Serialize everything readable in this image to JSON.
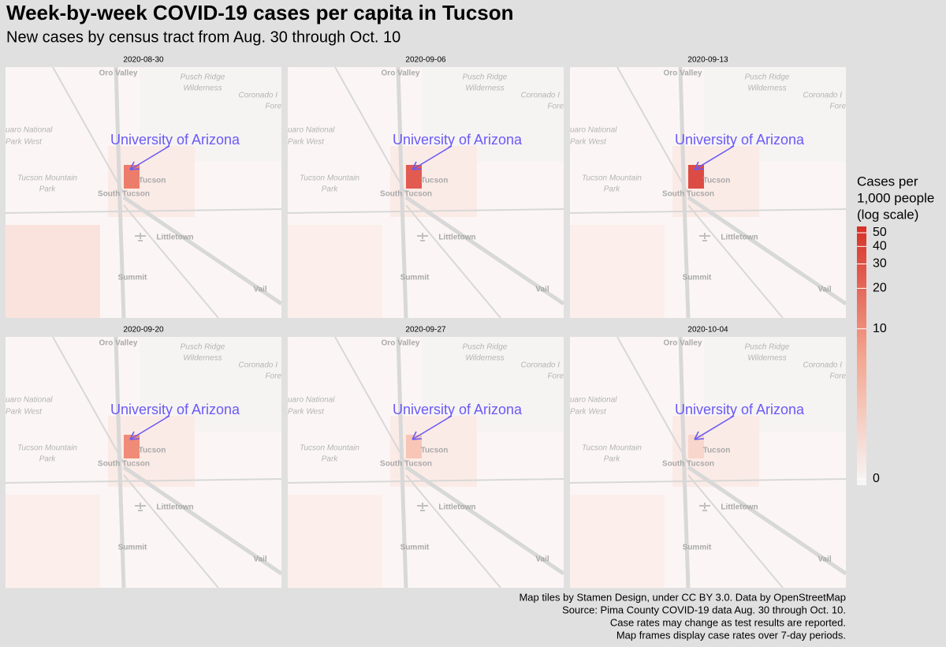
{
  "header": {
    "title": "Week-by-week COVID-19 cases per capita in Tucson",
    "subtitle": "New cases by census tract from Aug. 30 through Oct. 10"
  },
  "panels": [
    {
      "date": "2020-08-30",
      "highlight": "#ea6a55"
    },
    {
      "date": "2020-09-06",
      "highlight": "#dd4236"
    },
    {
      "date": "2020-09-13",
      "highlight": "#d73027"
    },
    {
      "date": "2020-09-20",
      "highlight": "#ec7a62"
    },
    {
      "date": "2020-09-27",
      "highlight": "#f6c0ae"
    },
    {
      "date": "2020-10-04",
      "highlight": "#f7d2c6"
    }
  ],
  "places": [
    "Oro Valley",
    "Pusch Ridge",
    "Wilderness",
    "Coronado I",
    "Fore",
    "uaro National",
    "Park West",
    "Tucson Mountain",
    "Park",
    "Tucson",
    "South Tucson",
    "Littletown",
    "Summit",
    "Vail"
  ],
  "annotation": "University of Arizona",
  "legend": {
    "title": [
      "Cases per",
      "1,000 people",
      "(log scale)"
    ],
    "ticks": [
      0,
      10,
      20,
      30,
      40,
      50
    ],
    "scale": "log1p",
    "colors": [
      "#f7f7f7",
      "#f4a58f",
      "#d73027"
    ]
  },
  "caption": [
    "Map tiles by Stamen Design, under CC BY 3.0. Data by OpenStreetMap",
    "Source: Pima County COVID-19 data Aug. 30 through Oct. 10.",
    "Case rates may change as test results are reported.",
    "Map frames display case rates over 7-day periods."
  ]
}
